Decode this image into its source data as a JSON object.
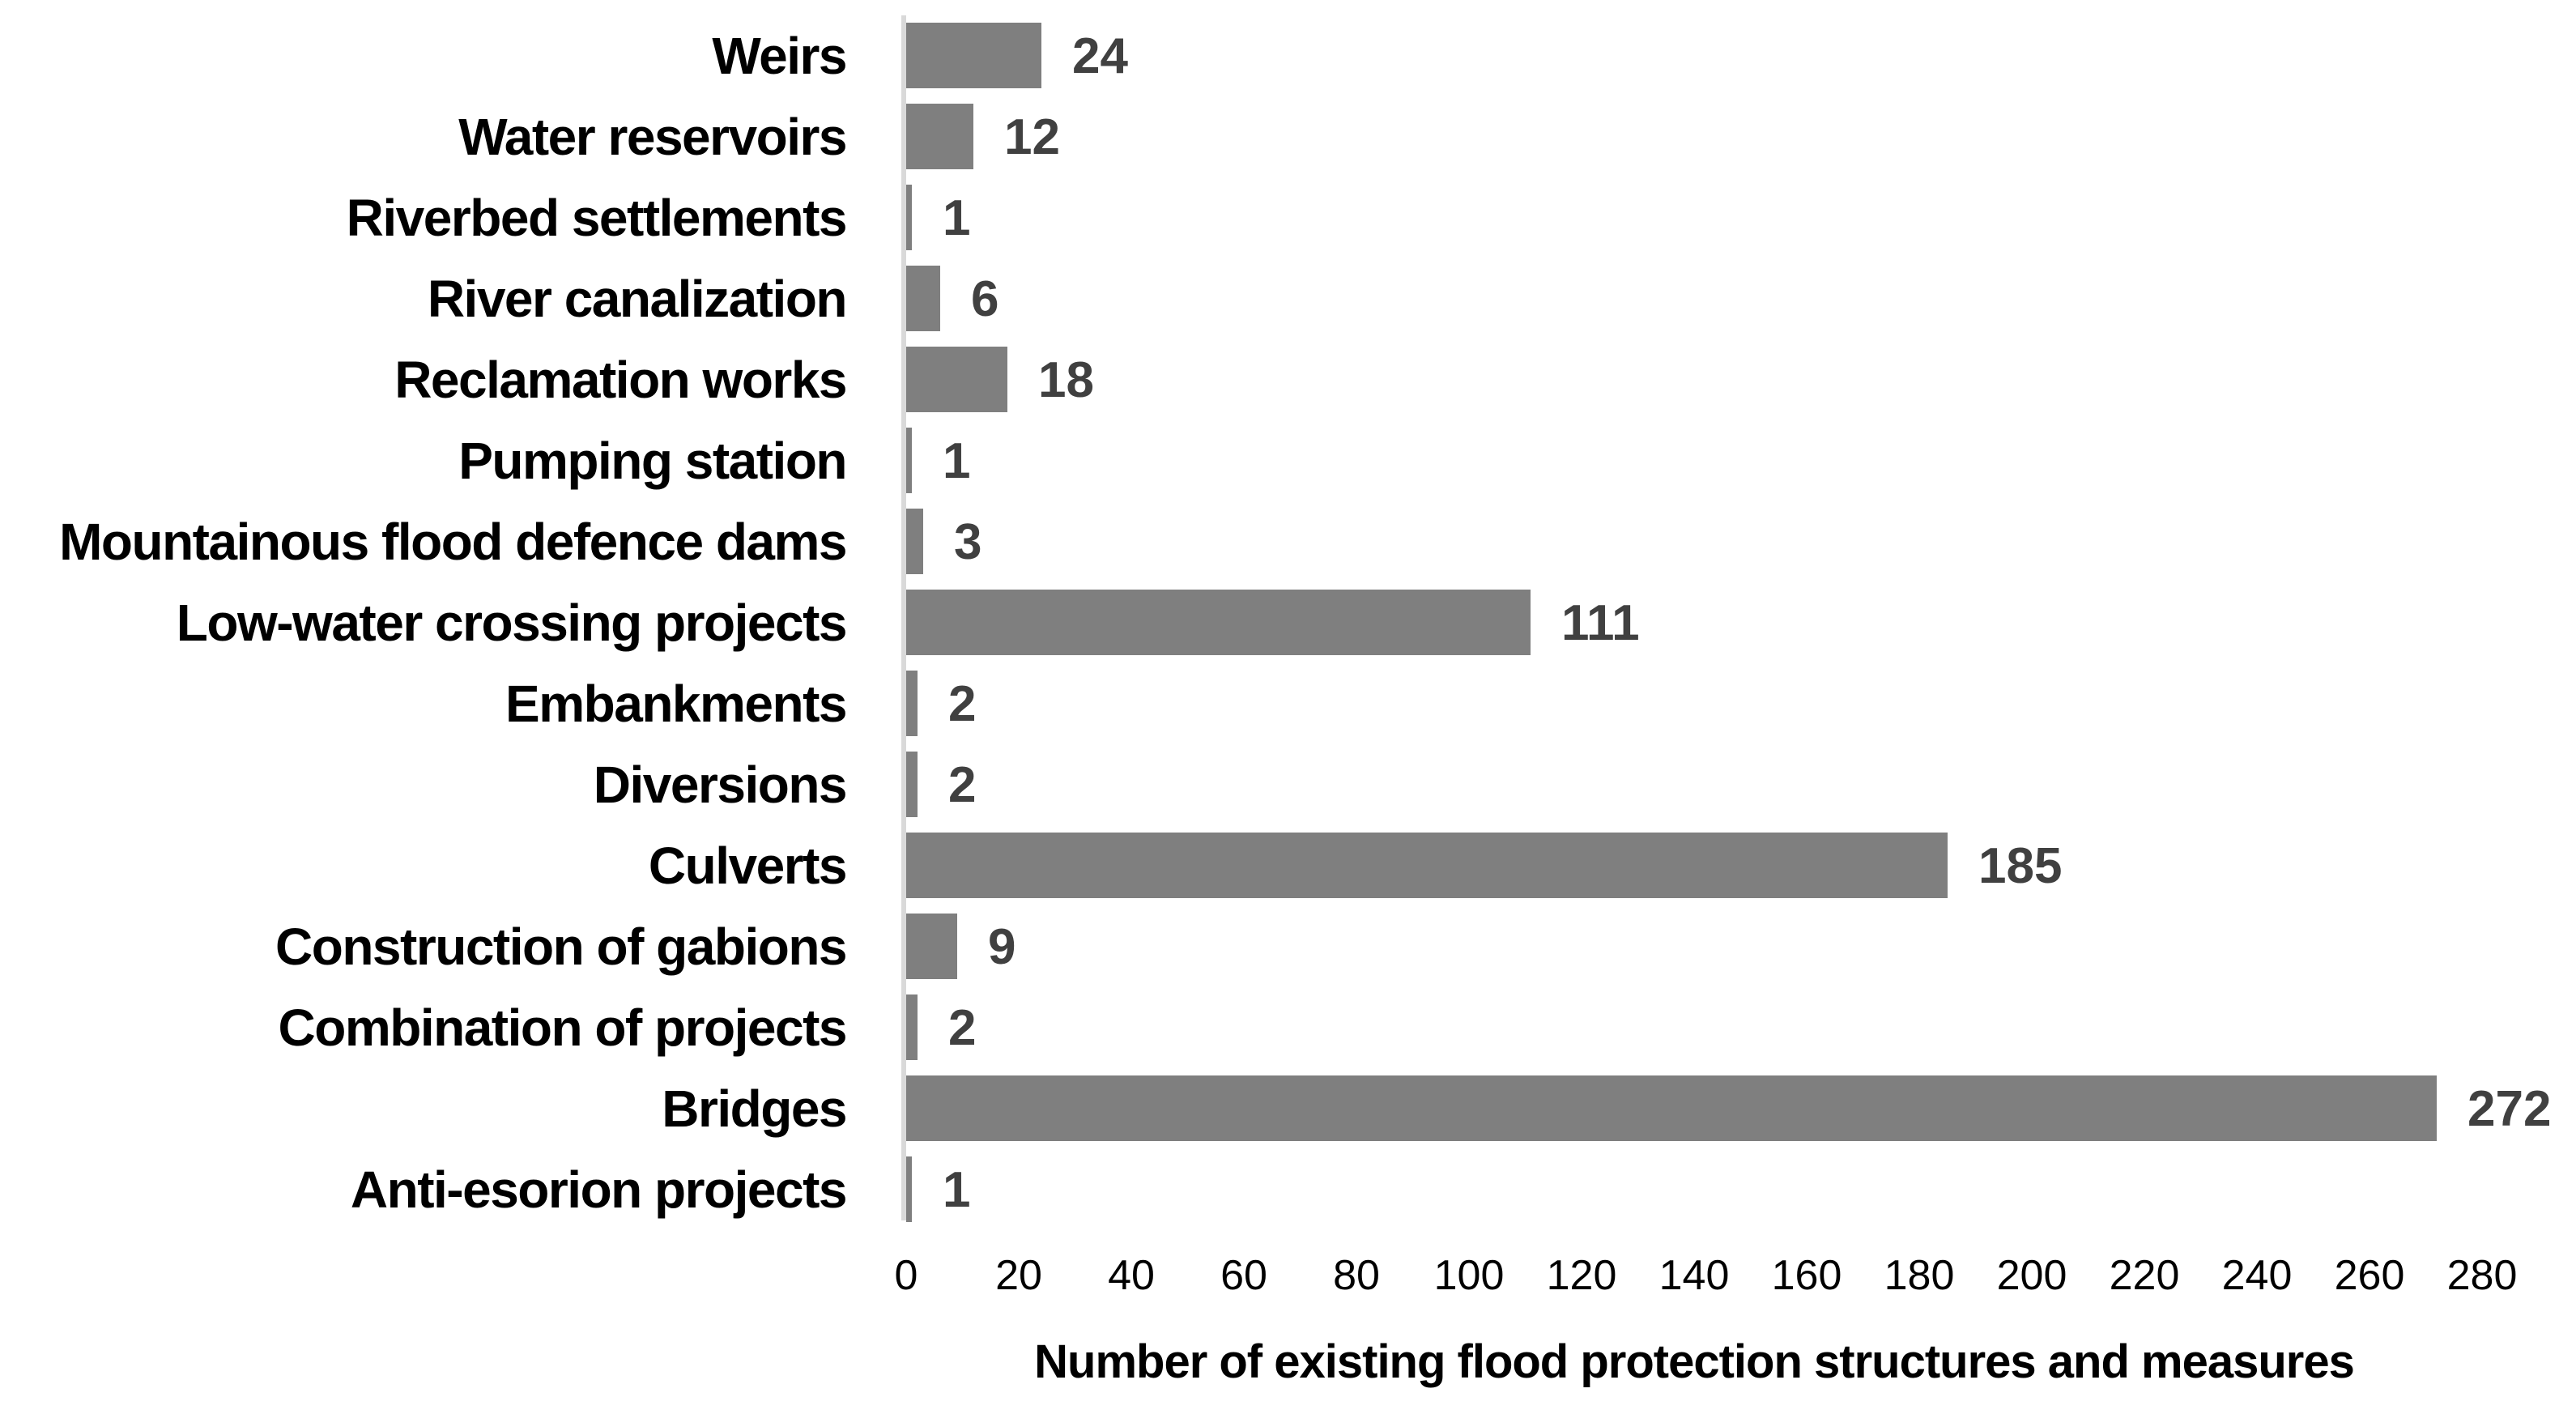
{
  "chart_data": {
    "type": "bar",
    "orientation": "horizontal",
    "categories": [
      "Weirs",
      "Water reservoirs",
      "Riverbed settlements",
      "River canalization",
      "Reclamation works",
      "Pumping station",
      "Mountainous flood defence dams",
      "Low-water crossing projects",
      "Embankments",
      "Diversions",
      "Culverts",
      "Construction of gabions",
      "Combination of projects",
      "Bridges",
      "Anti-esorion projects"
    ],
    "values": [
      24,
      12,
      1,
      6,
      18,
      1,
      3,
      111,
      2,
      2,
      185,
      9,
      2,
      272,
      1
    ],
    "title": "",
    "xlabel": "Number of existing flood protection structures and measures",
    "ylabel": "",
    "xlim": [
      0,
      280
    ],
    "xticks": [
      0,
      20,
      40,
      60,
      80,
      100,
      120,
      140,
      160,
      180,
      200,
      220,
      240,
      260,
      280
    ],
    "grid": false,
    "legend": false,
    "data_labels_shown": true,
    "bar_color": "#7f7f7f",
    "value_label_color": "#404040",
    "axis_line_color": "#d9d9d9",
    "text_color": "#000000",
    "background_color": "#ffffff"
  }
}
